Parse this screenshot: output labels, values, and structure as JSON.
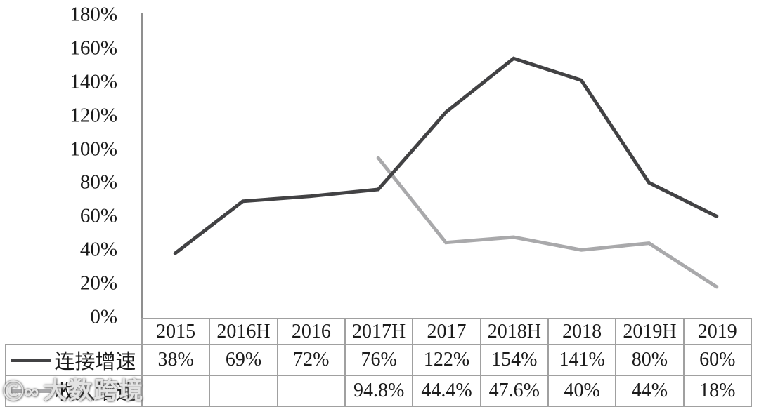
{
  "watermark": {
    "logo": "Ⓒ∞",
    "text": "大数跨境"
  },
  "colors": {
    "axis": "#8f8f8f",
    "table_border": "#a0a0a0",
    "text": "#1b1b1b",
    "series1": "#424244",
    "series2": "#a9a9ab"
  },
  "chart_data": {
    "type": "line",
    "title": "",
    "xlabel": "",
    "ylabel": "",
    "ylim": [
      0,
      180
    ],
    "ytick_step": 20,
    "grid": false,
    "legend_position": "table-left",
    "categories": [
      "2015",
      "2016H",
      "2016",
      "2017H",
      "2017",
      "2018H",
      "2018",
      "2019H",
      "2019"
    ],
    "yticks": [
      {
        "label": "180%",
        "value": 180
      },
      {
        "label": "160%",
        "value": 160
      },
      {
        "label": "140%",
        "value": 140
      },
      {
        "label": "120%",
        "value": 120
      },
      {
        "label": "100%",
        "value": 100
      },
      {
        "label": "80%",
        "value": 80
      },
      {
        "label": "60%",
        "value": 60
      },
      {
        "label": "40%",
        "value": 40
      },
      {
        "label": "20%",
        "value": 20
      },
      {
        "label": "0%",
        "value": 0
      }
    ],
    "series": [
      {
        "name": "连接增速",
        "color": "#424244",
        "values": [
          38,
          69,
          72,
          76,
          122,
          154,
          141,
          80,
          60
        ],
        "labels": [
          "38%",
          "69%",
          "72%",
          "76%",
          "122%",
          "154%",
          "141%",
          "80%",
          "60%"
        ]
      },
      {
        "name": "收入增速",
        "color": "#a9a9ab",
        "values": [
          null,
          null,
          null,
          94.8,
          44.4,
          47.6,
          40,
          44,
          18
        ],
        "labels": [
          "",
          "",
          "",
          "94.8%",
          "44.4%",
          "47.6%",
          "40%",
          "44%",
          "18%"
        ]
      }
    ]
  }
}
